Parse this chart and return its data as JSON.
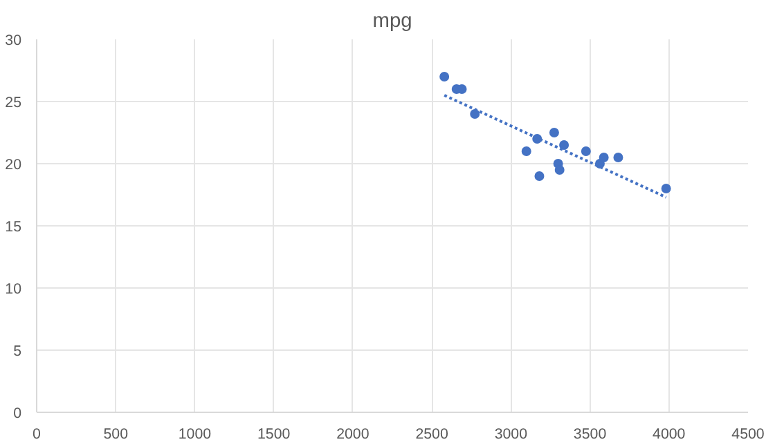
{
  "chart_data": {
    "type": "scatter",
    "title": "mpg",
    "xlim": [
      0,
      4500
    ],
    "xticks": [
      0,
      500,
      1000,
      1500,
      2000,
      2500,
      3000,
      3500,
      4000,
      4500
    ],
    "ylim": [
      0,
      30
    ],
    "yticks": [
      0,
      5,
      10,
      15,
      20,
      25,
      30
    ],
    "grid": true,
    "series": [
      {
        "marker": "circle",
        "color": "#4472c4",
        "x": [
          2579,
          2656,
          2690,
          2772,
          3098,
          3166,
          3180,
          3274,
          3299,
          3308,
          3336,
          3475,
          3563,
          3588,
          3679,
          3982
        ],
        "values": [
          27,
          26,
          26,
          24,
          21,
          22,
          19,
          22.5,
          20,
          19.5,
          21.5,
          21,
          20,
          20.5,
          20.5,
          18
        ]
      },
      {
        "type": "line",
        "color": "#4472c4",
        "line_style": "dotted",
        "x": [
          2579,
          3982
        ],
        "values": [
          25.5,
          17.3
        ]
      }
    ]
  }
}
